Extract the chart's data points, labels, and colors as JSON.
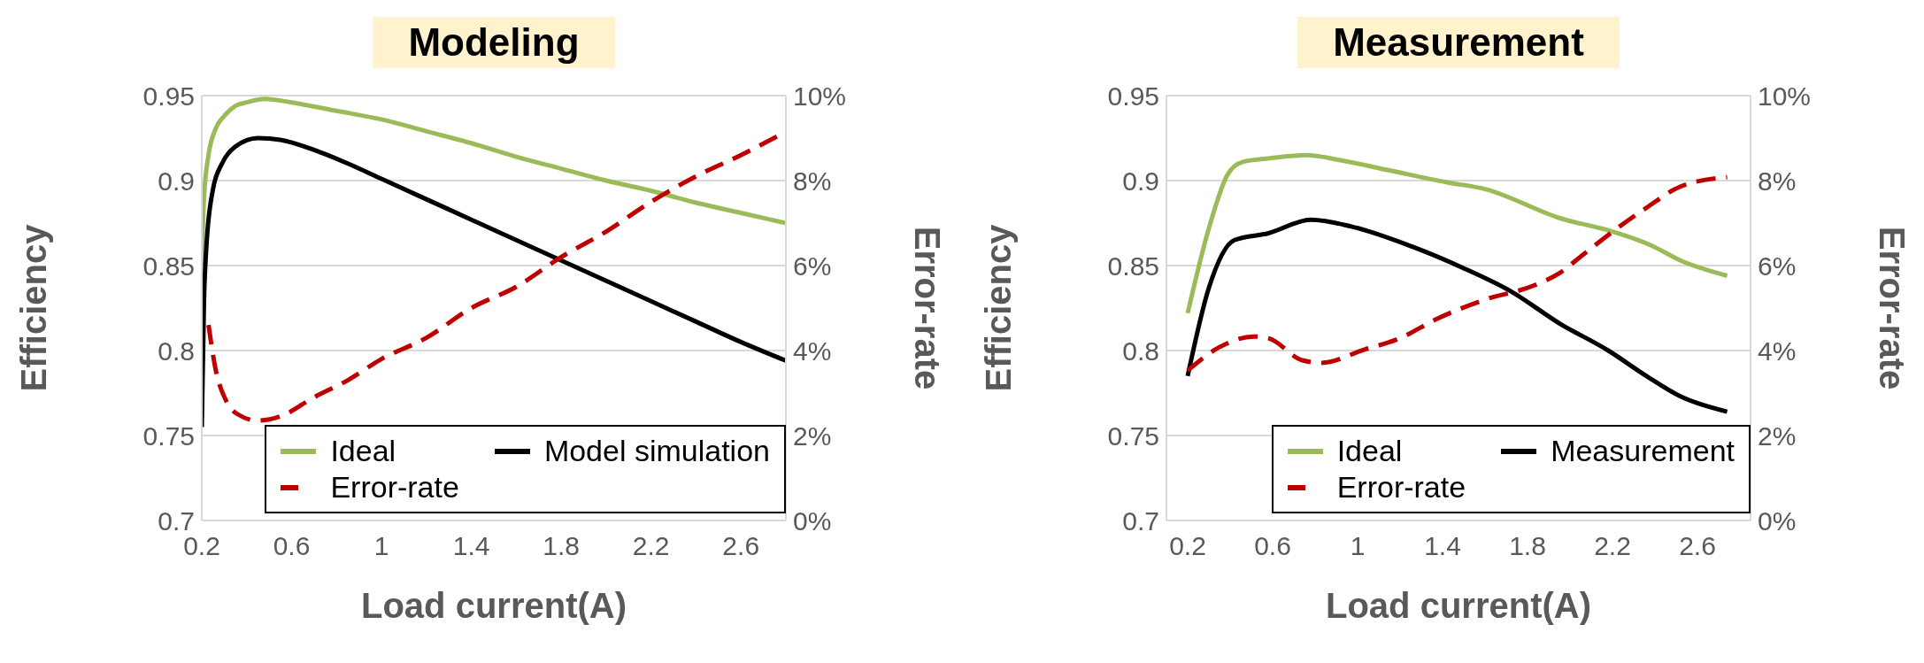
{
  "chart_data": [
    {
      "type": "line",
      "title": "Modeling",
      "xlabel": "Load current(A)",
      "ylabel": "Efficiency",
      "y2label": "Error-rate",
      "xlim": [
        0.2,
        2.8
      ],
      "xticks": [
        0.2,
        0.6,
        1,
        1.4,
        1.8,
        2.2,
        2.6
      ],
      "ylim": [
        0.7,
        0.95
      ],
      "yticks": [
        0.7,
        0.75,
        0.8,
        0.85,
        0.9,
        0.95
      ],
      "y2lim": [
        0,
        10
      ],
      "y2ticks": [
        {
          "value": 0,
          "label": "0%"
        },
        {
          "value": 2,
          "label": "2%"
        },
        {
          "value": 4,
          "label": "4%"
        },
        {
          "value": 6,
          "label": "6%"
        },
        {
          "value": 8,
          "label": "8%"
        },
        {
          "value": 10,
          "label": "10%"
        }
      ],
      "grid": "y",
      "legend": "bottom right",
      "series": [
        {
          "name": "Ideal",
          "color": "#9bbb59",
          "x": [
            0.2,
            0.21,
            0.23,
            0.26,
            0.3,
            0.35,
            0.4,
            0.48,
            0.6,
            0.8,
            1.0,
            1.2,
            1.4,
            1.6,
            1.8,
            2.0,
            2.2,
            2.4,
            2.6,
            2.8
          ],
          "values": [
            0.85,
            0.89,
            0.915,
            0.93,
            0.938,
            0.944,
            0.946,
            0.948,
            0.946,
            0.941,
            0.936,
            0.929,
            0.922,
            0.914,
            0.907,
            0.9,
            0.894,
            0.887,
            0.881,
            0.875
          ]
        },
        {
          "name": "Model simulation",
          "color": "#000000",
          "x": [
            0.2,
            0.21,
            0.22,
            0.25,
            0.29,
            0.35,
            0.45,
            0.55,
            0.7,
            0.85,
            1.0,
            1.2,
            1.4,
            1.6,
            1.8,
            2.0,
            2.2,
            2.4,
            2.6,
            2.8
          ],
          "values": [
            0.755,
            0.83,
            0.86,
            0.895,
            0.91,
            0.92,
            0.925,
            0.924,
            0.918,
            0.91,
            0.901,
            0.889,
            0.877,
            0.865,
            0.853,
            0.841,
            0.829,
            0.817,
            0.805,
            0.794
          ]
        },
        {
          "name": "Error-rate",
          "color": "#c00000",
          "axis": "y2",
          "line_style": "dashed",
          "x": [
            0.23,
            0.26,
            0.31,
            0.36,
            0.45,
            0.55,
            0.7,
            0.85,
            1.0,
            1.2,
            1.4,
            1.6,
            1.8,
            2.0,
            2.2,
            2.4,
            2.6,
            2.8
          ],
          "values": [
            4.6,
            3.6,
            2.8,
            2.5,
            2.35,
            2.45,
            2.9,
            3.3,
            3.8,
            4.3,
            5.0,
            5.5,
            6.2,
            6.8,
            7.5,
            8.1,
            8.6,
            9.15
          ]
        }
      ]
    },
    {
      "type": "line",
      "title": "Measurement",
      "xlabel": "Load current(A)",
      "ylabel": "Efficiency",
      "y2label": "Error-rate",
      "xlim": [
        0.1,
        2.85
      ],
      "xticks": [
        0.2,
        0.6,
        1,
        1.4,
        1.8,
        2.2,
        2.6
      ],
      "ylim": [
        0.7,
        0.95
      ],
      "yticks": [
        0.7,
        0.75,
        0.8,
        0.85,
        0.9,
        0.95
      ],
      "y2lim": [
        0,
        10
      ],
      "y2ticks": [
        {
          "value": 0,
          "label": "0%"
        },
        {
          "value": 2,
          "label": "2%"
        },
        {
          "value": 4,
          "label": "4%"
        },
        {
          "value": 6,
          "label": "6%"
        },
        {
          "value": 8,
          "label": "8%"
        },
        {
          "value": 10,
          "label": "10%"
        }
      ],
      "grid": "y",
      "legend": "bottom right",
      "series": [
        {
          "name": "Ideal",
          "color": "#9bbb59",
          "x": [
            0.2,
            0.3,
            0.39,
            0.46,
            0.58,
            0.76,
            0.92,
            1.15,
            1.42,
            1.6,
            1.95,
            2.2,
            2.38,
            2.52,
            2.74
          ],
          "values": [
            0.822,
            0.872,
            0.904,
            0.911,
            0.913,
            0.915,
            0.912,
            0.906,
            0.899,
            0.895,
            0.878,
            0.87,
            0.862,
            0.853,
            0.844
          ]
        },
        {
          "name": "Measurement",
          "color": "#000000",
          "x": [
            0.2,
            0.3,
            0.42,
            0.58,
            0.78,
            0.97,
            1.26,
            1.49,
            1.72,
            1.95,
            2.18,
            2.36,
            2.52,
            2.74
          ],
          "values": [
            0.785,
            0.837,
            0.865,
            0.869,
            0.877,
            0.873,
            0.861,
            0.849,
            0.835,
            0.816,
            0.8,
            0.785,
            0.773,
            0.764
          ]
        },
        {
          "name": "Error-rate",
          "color": "#c00000",
          "axis": "y2",
          "line_style": "dashed",
          "x": [
            0.2,
            0.35,
            0.51,
            0.58,
            0.74,
            0.83,
            1.03,
            1.19,
            1.38,
            1.6,
            1.83,
            1.95,
            2.06,
            2.22,
            2.36,
            2.52,
            2.74
          ],
          "values": [
            3.53,
            4.08,
            4.33,
            4.29,
            3.77,
            3.71,
            4.02,
            4.27,
            4.76,
            5.2,
            5.53,
            5.82,
            6.25,
            6.87,
            7.36,
            7.86,
            8.08
          ]
        }
      ]
    }
  ]
}
